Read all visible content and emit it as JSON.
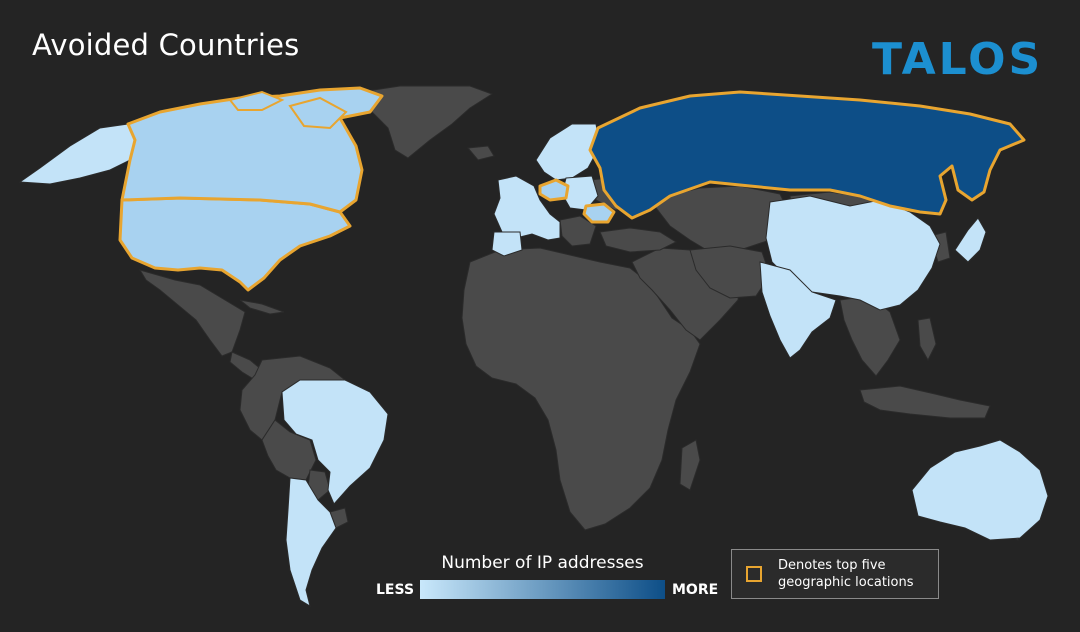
{
  "title": "Avoided Countries",
  "logo": "TALOS",
  "legend": {
    "title": "Number of IP addresses",
    "less_label": "LESS",
    "more_label": "MORE",
    "gradient_start": "#c9e8fb",
    "gradient_end": "#0d4e87"
  },
  "note": {
    "text": "Denotes top five geographic locations",
    "highlight_color": "#e8a530"
  },
  "colors": {
    "background": "#242424",
    "land_default": "#4a4a4a",
    "border": "#2b2b2b",
    "level_low": "#c3e3f8",
    "level_mid": "#a8d2f0",
    "level_high": "#0d4e87",
    "brand": "#1c8fd0"
  },
  "highlighted_countries": [
    "United States",
    "Canada",
    "Russia",
    "Czech Republic",
    "Romania"
  ],
  "countries": [
    {
      "name": "Russia",
      "level": "high",
      "top_five": true
    },
    {
      "name": "United States",
      "level": "mid",
      "top_five": true
    },
    {
      "name": "Canada",
      "level": "mid",
      "top_five": true
    },
    {
      "name": "Czech Republic",
      "level": "mid",
      "top_five": true
    },
    {
      "name": "Romania",
      "level": "mid",
      "top_five": true
    },
    {
      "name": "China",
      "level": "low",
      "top_five": false
    },
    {
      "name": "India",
      "level": "low",
      "top_five": false
    },
    {
      "name": "Australia",
      "level": "low",
      "top_five": false
    },
    {
      "name": "Brazil",
      "level": "low",
      "top_five": false
    },
    {
      "name": "Argentina",
      "level": "low",
      "top_five": false
    },
    {
      "name": "Japan",
      "level": "low",
      "top_five": false
    },
    {
      "name": "Scandinavia",
      "level": "low",
      "top_five": false
    },
    {
      "name": "Western Europe",
      "level": "low",
      "top_five": false
    }
  ]
}
